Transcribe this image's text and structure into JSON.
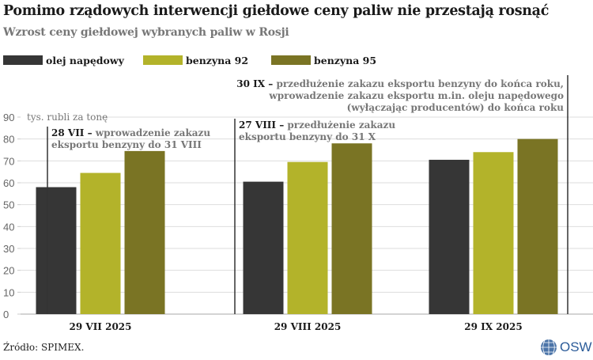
{
  "title": "Pomimo rządowych interwencji giełdowe ceny paliw nie przestają rosnąć",
  "subtitle": "Wzrost ceny giełdowej wybranych paliw w Rosji",
  "source": "Źródło: SPIMEX.",
  "logo": "OSW",
  "chart_data": {
    "type": "bar",
    "ylabel": "tys. rubli za tonę",
    "ylim": [
      0,
      90
    ],
    "yticks": [
      0,
      10,
      20,
      30,
      40,
      50,
      60,
      70,
      80,
      90
    ],
    "grid": true,
    "legend_position": "top-left",
    "categories": [
      "29 VII 2025",
      "29 VIII 2025",
      "29 IX 2025"
    ],
    "series": [
      {
        "name": "olej napędowy",
        "color": "#363636",
        "values": [
          58,
          60.5,
          70.5
        ]
      },
      {
        "name": "benzyna 92",
        "color": "#b3b32a",
        "values": [
          64.5,
          69.5,
          74
        ]
      },
      {
        "name": "benzyna 95",
        "color": "#7a7424",
        "values": [
          74.5,
          78,
          80
        ]
      }
    ],
    "annotations": [
      {
        "date": "28 VII",
        "lines": [
          "wprowadzenie zakazu",
          "eksportu benzyny do 31 VIII"
        ]
      },
      {
        "date": "27 VIII",
        "lines": [
          "przedłużenie zakazu",
          "eksportu benzyny do 31 X"
        ]
      },
      {
        "date": "30 IX",
        "lines": [
          "przedłużenie zakazu eksportu benzyny do końca roku,",
          "wprowadzenie zakazu eksportu m.in. oleju napędowego",
          "(wyłączając producentów) do końca roku"
        ]
      }
    ]
  }
}
